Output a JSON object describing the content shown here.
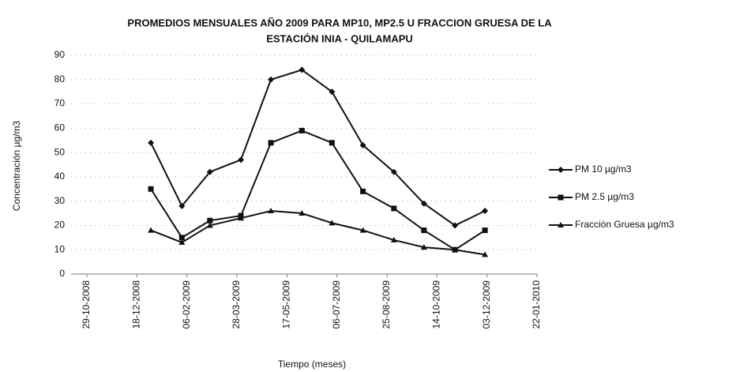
{
  "chart_data": {
    "type": "line",
    "title": [
      "PROMEDIOS MENSUALES  AÑO 2009 PARA MP10, MP2.5 U FRACCION GRUESA DE LA",
      "ESTACIÓN INIA - QUILAMAPU"
    ],
    "x_label": "Tiempo (meses)",
    "y_label": "Concentración µg/m3",
    "x": [
      "2009-01-01",
      "2009-02-01",
      "2009-03-01",
      "2009-04-01",
      "2009-05-01",
      "2009-06-01",
      "2009-07-01",
      "2009-08-01",
      "2009-09-01",
      "2009-10-01",
      "2009-11-01",
      "2009-12-01"
    ],
    "series": [
      {
        "name": "PM 10 µg/m3",
        "color": "#111111",
        "marker": "diamond",
        "values": [
          54,
          28,
          42,
          47,
          80,
          84,
          75,
          53,
          42,
          29,
          20,
          26
        ]
      },
      {
        "name": "PM 2.5 µg/m3",
        "color": "#111111",
        "marker": "square",
        "values": [
          35,
          15,
          22,
          24,
          54,
          59,
          54,
          34,
          27,
          18,
          10,
          18
        ]
      },
      {
        "name": "Fracción Gruesa µg/m3",
        "color": "#111111",
        "marker": "triangle",
        "values": [
          18,
          13,
          20,
          23,
          26,
          25,
          21,
          18,
          14,
          11,
          10,
          8
        ]
      }
    ],
    "xlim": [
      "2008-10-29",
      "2010-01-22"
    ],
    "xticks": [
      {
        "value": "2008-10-29",
        "label": "29-10-2008"
      },
      {
        "value": "2008-12-18",
        "label": "18-12-2008"
      },
      {
        "value": "2009-02-06",
        "label": "06-02-2009"
      },
      {
        "value": "2009-03-28",
        "label": "28-03-2009"
      },
      {
        "value": "2009-05-17",
        "label": "17-05-2009"
      },
      {
        "value": "2009-07-06",
        "label": "06-07-2009"
      },
      {
        "value": "2009-08-25",
        "label": "25-08-2009"
      },
      {
        "value": "2009-10-14",
        "label": "14-10-2009"
      },
      {
        "value": "2009-12-03",
        "label": "03-12-2009"
      },
      {
        "value": "2010-01-22",
        "label": "22-01-2010"
      }
    ],
    "ylim": [
      0,
      90
    ],
    "yticks": [
      0,
      10,
      20,
      30,
      40,
      50,
      60,
      70,
      80,
      90
    ],
    "grid": true,
    "legend": "right"
  }
}
